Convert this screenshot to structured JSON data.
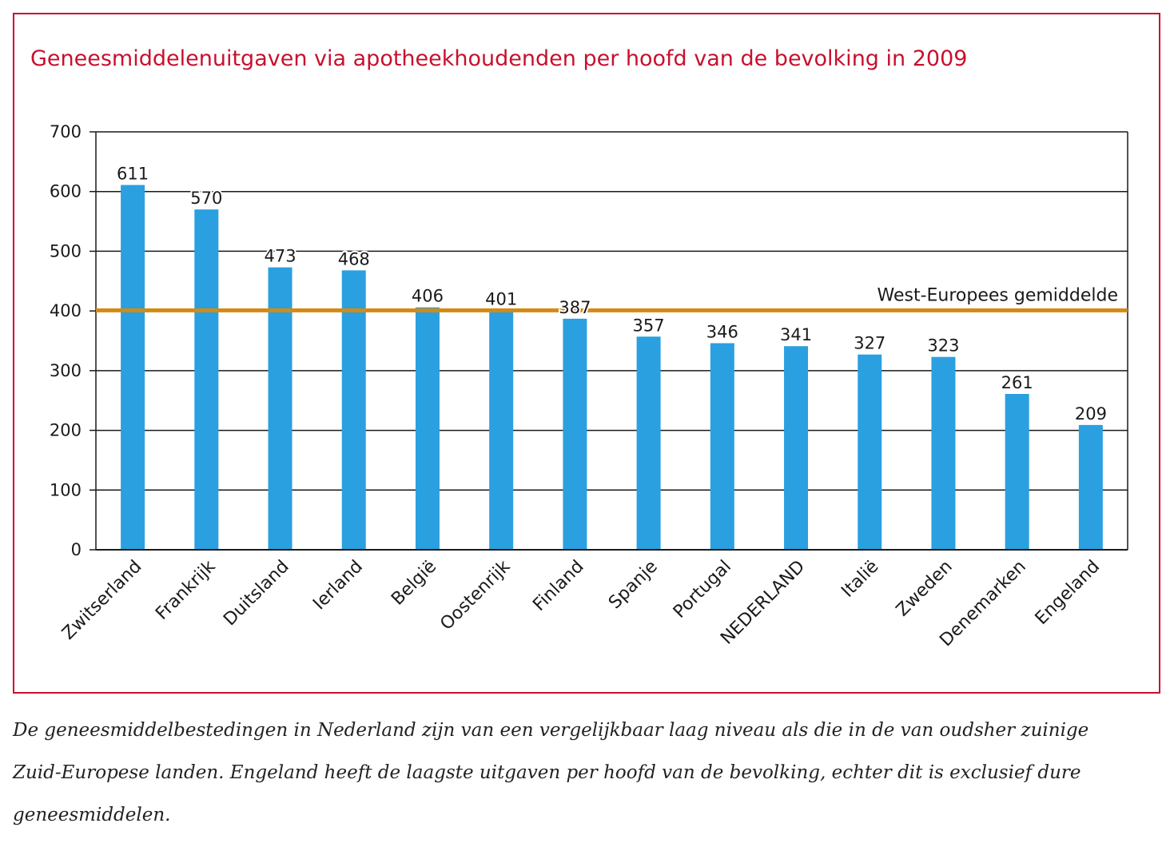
{
  "chart_data": {
    "type": "bar",
    "title": "Geneesmiddelenuitgaven via apotheekhoudenden per hoofd van de bevolking in 2009",
    "xlabel": "",
    "ylabel": "",
    "ylim": [
      0,
      700
    ],
    "yticks": [
      0,
      100,
      200,
      300,
      400,
      500,
      600,
      700
    ],
    "grid": true,
    "categories": [
      "Zwitserland",
      "Frankrijk",
      "Duitsland",
      "Ierland",
      "België",
      "Oostenrijk",
      "Finland",
      "Spanje",
      "Portugal",
      "NEDERLAND",
      "Italië",
      "Zweden",
      "Denemarken",
      "Engeland"
    ],
    "values": [
      611,
      570,
      473,
      468,
      406,
      401,
      387,
      357,
      346,
      341,
      327,
      323,
      261,
      209
    ],
    "data_labels": [
      "611",
      "570",
      "473",
      "468",
      "406",
      "401",
      "387",
      "357",
      "346",
      "341",
      "327",
      "323",
      "261",
      "209"
    ],
    "reference_line": {
      "label": "West-Europees gemiddelde",
      "value": 401
    },
    "colors": {
      "bar": "#2aa0e0",
      "reference_line": "#d48a14",
      "title": "#c8102e",
      "frame": "#c8102e"
    }
  },
  "caption": "De geneesmiddelbestedingen in Nederland zijn van een vergelijkbaar laag niveau als die in de van oudsher zuinige Zuid-Europese landen. Engeland heeft de laagste uitgaven per hoofd van de bevolking, echter dit is exclusief dure geneesmiddelen."
}
